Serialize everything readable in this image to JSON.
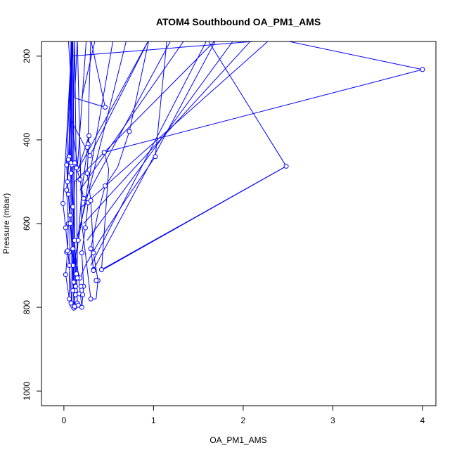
{
  "chart_data": {
    "type": "line",
    "title": "ATOM4 Southbound OA_PM1_AMS",
    "xlabel": "OA_PM1_AMS",
    "ylabel": "Pressure (mbar)",
    "xlim": [
      -0.25,
      4.15
    ],
    "ylim": [
      1035,
      165
    ],
    "y_reversed": true,
    "x_ticks": [
      0,
      1,
      2,
      3,
      4
    ],
    "x_tick_labels": [
      "0",
      "1",
      "2",
      "3",
      "4"
    ],
    "y_ticks": [
      200,
      400,
      600,
      800,
      1000
    ],
    "y_tick_labels": [
      "200",
      "400",
      "600",
      "800",
      "1000"
    ],
    "grid": false,
    "series": [
      {
        "color": "#0000ff",
        "marker": "open-circle",
        "points": [
          {
            "x": 0.05,
            "y": 160,
            "m": false
          },
          {
            "x": 0.08,
            "y": 260,
            "m": false
          },
          {
            "x": 0.06,
            "y": 440,
            "m": true
          },
          {
            "x": 0.04,
            "y": 500,
            "m": true
          },
          {
            "x": 0.07,
            "y": 580,
            "m": true
          },
          {
            "x": 0.1,
            "y": 700,
            "m": true
          },
          {
            "x": 0.12,
            "y": 800,
            "m": true
          },
          {
            "x": 0.09,
            "y": 700,
            "m": false
          },
          {
            "x": 0.08,
            "y": 160,
            "m": false
          },
          {
            "x": 0.06,
            "y": 400,
            "m": false
          },
          {
            "x": 0.08,
            "y": 480,
            "m": true
          },
          {
            "x": 0.1,
            "y": 560,
            "m": true
          },
          {
            "x": 0.12,
            "y": 640,
            "m": true
          },
          {
            "x": 0.14,
            "y": 720,
            "m": true
          },
          {
            "x": 0.15,
            "y": 790,
            "m": true
          },
          {
            "x": 0.12,
            "y": 650,
            "m": false
          },
          {
            "x": 0.1,
            "y": 160,
            "m": false
          },
          {
            "x": 0.05,
            "y": 450,
            "m": true
          },
          {
            "x": 0.03,
            "y": 520,
            "m": true
          },
          {
            "x": 0.05,
            "y": 600,
            "m": true
          },
          {
            "x": 0.04,
            "y": 667,
            "m": true
          },
          {
            "x": 0.02,
            "y": 722,
            "m": true
          },
          {
            "x": 0.06,
            "y": 780,
            "m": true
          },
          {
            "x": 0.09,
            "y": 160,
            "m": false
          },
          {
            "x": 0.07,
            "y": 330,
            "m": false
          },
          {
            "x": 0.09,
            "y": 460,
            "m": true
          },
          {
            "x": 0.14,
            "y": 467,
            "m": true
          },
          {
            "x": 0.18,
            "y": 495,
            "m": true
          },
          {
            "x": 0.22,
            "y": 540,
            "m": true
          },
          {
            "x": 0.27,
            "y": 550,
            "m": true
          },
          {
            "x": 0.24,
            "y": 610,
            "m": true
          },
          {
            "x": 0.2,
            "y": 670,
            "m": true
          },
          {
            "x": 0.22,
            "y": 750,
            "m": true
          },
          {
            "x": 0.2,
            "y": 800,
            "m": true
          },
          {
            "x": 0.15,
            "y": 700,
            "m": false
          },
          {
            "x": 0.12,
            "y": 160,
            "m": false
          },
          {
            "x": 0.1,
            "y": 380,
            "m": false
          },
          {
            "x": 0.16,
            "y": 470,
            "m": true
          },
          {
            "x": 0.28,
            "y": 390,
            "m": true
          },
          {
            "x": 0.26,
            "y": 480,
            "m": true
          },
          {
            "x": 0.3,
            "y": 545,
            "m": true
          },
          {
            "x": 0.33,
            "y": 670,
            "m": true
          },
          {
            "x": 0.38,
            "y": 736,
            "m": true
          },
          {
            "x": 0.36,
            "y": 780,
            "m": false
          },
          {
            "x": 0.3,
            "y": 780,
            "m": true
          },
          {
            "x": 0.2,
            "y": 600,
            "m": false
          },
          {
            "x": 0.15,
            "y": 160,
            "m": false
          },
          {
            "x": 0.12,
            "y": 300,
            "m": false
          },
          {
            "x": 0.46,
            "y": 322,
            "m": true
          },
          {
            "x": 0.3,
            "y": 160,
            "m": false
          },
          {
            "x": 0.28,
            "y": 300,
            "m": false
          },
          {
            "x": 0.27,
            "y": 410,
            "m": true
          },
          {
            "x": 0.2,
            "y": 520,
            "m": false
          },
          {
            "x": 0.16,
            "y": 640,
            "m": true
          },
          {
            "x": 0.12,
            "y": 740,
            "m": true
          },
          {
            "x": 0.1,
            "y": 160,
            "m": false
          },
          {
            "x": 0.07,
            "y": 350,
            "m": false
          },
          {
            "x": 0.29,
            "y": 438,
            "m": true
          },
          {
            "x": 0.95,
            "y": 160,
            "m": false
          },
          {
            "x": 0.73,
            "y": 380,
            "m": true
          },
          {
            "x": 0.6,
            "y": 465,
            "m": false
          },
          {
            "x": 0.46,
            "y": 510,
            "m": true
          },
          {
            "x": 0.38,
            "y": 575,
            "m": false
          },
          {
            "x": 0.3,
            "y": 660,
            "m": true
          },
          {
            "x": 0.33,
            "y": 710,
            "m": true
          },
          {
            "x": 1.7,
            "y": 160,
            "m": false
          },
          {
            "x": 0.45,
            "y": 430,
            "m": true
          },
          {
            "x": 0.5,
            "y": 470,
            "m": false
          },
          {
            "x": 0.42,
            "y": 710,
            "m": true
          },
          {
            "x": 2.48,
            "y": 463,
            "m": true
          },
          {
            "x": 1.6,
            "y": 160,
            "m": false
          },
          {
            "x": 1.15,
            "y": 160,
            "m": false
          },
          {
            "x": 1.02,
            "y": 440,
            "m": true
          },
          {
            "x": 0.7,
            "y": 540,
            "m": false
          },
          {
            "x": 0.4,
            "y": 640,
            "m": false
          },
          {
            "x": 0.24,
            "y": 700,
            "m": false
          },
          {
            "x": 0.18,
            "y": 730,
            "m": true
          },
          {
            "x": 0.09,
            "y": 670,
            "m": false
          },
          {
            "x": 0.12,
            "y": 500,
            "m": false
          },
          {
            "x": 0.45,
            "y": 430,
            "m": true
          },
          {
            "x": 4.0,
            "y": 232,
            "m": true
          },
          {
            "x": 2.4,
            "y": 160,
            "m": false
          },
          {
            "x": 0.08,
            "y": 200,
            "m": false
          },
          {
            "x": 0.03,
            "y": 460,
            "m": true
          },
          {
            "x": 0.05,
            "y": 530,
            "m": true
          },
          {
            "x": 0.07,
            "y": 600,
            "m": true
          },
          {
            "x": 0.1,
            "y": 660,
            "m": true
          },
          {
            "x": 0.13,
            "y": 750,
            "m": true
          },
          {
            "x": 0.11,
            "y": 802,
            "m": true
          },
          {
            "x": 0.09,
            "y": 160,
            "m": false
          },
          {
            "x": -0.01,
            "y": 552,
            "m": true
          },
          {
            "x": 0.02,
            "y": 610,
            "m": true
          },
          {
            "x": 0.06,
            "y": 700,
            "m": true
          },
          {
            "x": 0.09,
            "y": 795,
            "m": true
          },
          {
            "x": 0.08,
            "y": 160,
            "m": false
          }
        ]
      }
    ],
    "extra_segments": [
      {
        "x1": 0.3,
        "y1": 700,
        "x2": 1.6,
        "y2": 160
      },
      {
        "x1": 0.26,
        "y1": 640,
        "x2": 1.9,
        "y2": 160
      },
      {
        "x1": 0.22,
        "y1": 600,
        "x2": 2.1,
        "y2": 160
      },
      {
        "x1": 0.2,
        "y1": 560,
        "x2": 2.3,
        "y2": 160
      },
      {
        "x1": 0.18,
        "y1": 520,
        "x2": 1.35,
        "y2": 160
      },
      {
        "x1": 0.16,
        "y1": 470,
        "x2": 0.95,
        "y2": 160
      },
      {
        "x1": 0.14,
        "y1": 640,
        "x2": 0.7,
        "y2": 160
      },
      {
        "x1": 0.12,
        "y1": 690,
        "x2": 0.55,
        "y2": 160
      },
      {
        "x1": 0.24,
        "y1": 540,
        "x2": 1.2,
        "y2": 160
      },
      {
        "x1": 0.42,
        "y1": 712,
        "x2": 2.48,
        "y2": 463
      },
      {
        "x1": 0.2,
        "y1": 300,
        "x2": 0.35,
        "y2": 160
      },
      {
        "x1": 0.15,
        "y1": 470,
        "x2": 0.25,
        "y2": 160
      }
    ],
    "extra_points": [
      {
        "x": 0.03,
        "y": 668
      },
      {
        "x": 0.06,
        "y": 668
      },
      {
        "x": 0.13,
        "y": 770
      },
      {
        "x": 0.17,
        "y": 768
      },
      {
        "x": 0.12,
        "y": 798
      },
      {
        "x": 0.16,
        "y": 795
      },
      {
        "x": 0.19,
        "y": 750
      },
      {
        "x": 0.21,
        "y": 770
      },
      {
        "x": 0.36,
        "y": 736
      },
      {
        "x": 0.33,
        "y": 712
      },
      {
        "x": 0.13,
        "y": 760
      },
      {
        "x": 0.11,
        "y": 740
      },
      {
        "x": 0.1,
        "y": 760
      },
      {
        "x": 0.08,
        "y": 790
      },
      {
        "x": 0.15,
        "y": 730
      },
      {
        "x": 0.05,
        "y": 447
      },
      {
        "x": 0.08,
        "y": 455
      },
      {
        "x": 0.12,
        "y": 455
      },
      {
        "x": 0.14,
        "y": 467
      },
      {
        "x": 0.04,
        "y": 665
      },
      {
        "x": 0.26,
        "y": 418
      }
    ]
  }
}
